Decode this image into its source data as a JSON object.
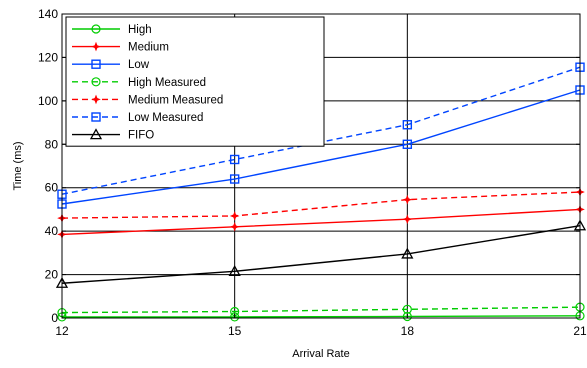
{
  "chart_data": {
    "type": "line",
    "title": "",
    "xlabel": "Arrival Rate",
    "ylabel": "Time (ms)",
    "x": [
      12,
      15,
      18,
      21
    ],
    "xlim": [
      12,
      21
    ],
    "ylim": [
      0,
      140
    ],
    "xticks": [
      "12",
      "15",
      "18",
      "21"
    ],
    "yticks": [
      "0",
      "20",
      "40",
      "60",
      "80",
      "100",
      "120",
      "140"
    ],
    "grid": true,
    "legend_position": "top-left",
    "series": [
      {
        "name": "High",
        "values": [
          0.5,
          0.5,
          0.7,
          1.0
        ],
        "color": "#00cc00",
        "dash": "solid",
        "marker": "circle"
      },
      {
        "name": "Medium",
        "values": [
          38.5,
          42,
          45.5,
          50
        ],
        "color": "#ff0000",
        "dash": "solid",
        "marker": "star"
      },
      {
        "name": "Low",
        "values": [
          52.5,
          64,
          80,
          105
        ],
        "color": "#0044ff",
        "dash": "solid",
        "marker": "square"
      },
      {
        "name": "High Measured",
        "values": [
          2.5,
          3,
          4,
          5
        ],
        "color": "#00cc00",
        "dash": "dashed",
        "marker": "circle"
      },
      {
        "name": "Medium Measured",
        "values": [
          46,
          47,
          54.5,
          58
        ],
        "color": "#ff0000",
        "dash": "dashed",
        "marker": "star"
      },
      {
        "name": "Low Measured",
        "values": [
          57,
          73,
          89,
          115.5
        ],
        "color": "#0044ff",
        "dash": "dashed",
        "marker": "square"
      },
      {
        "name": "FIFO",
        "values": [
          16,
          21.5,
          29.5,
          42.5
        ],
        "color": "#000000",
        "dash": "solid",
        "marker": "triangle"
      }
    ]
  }
}
